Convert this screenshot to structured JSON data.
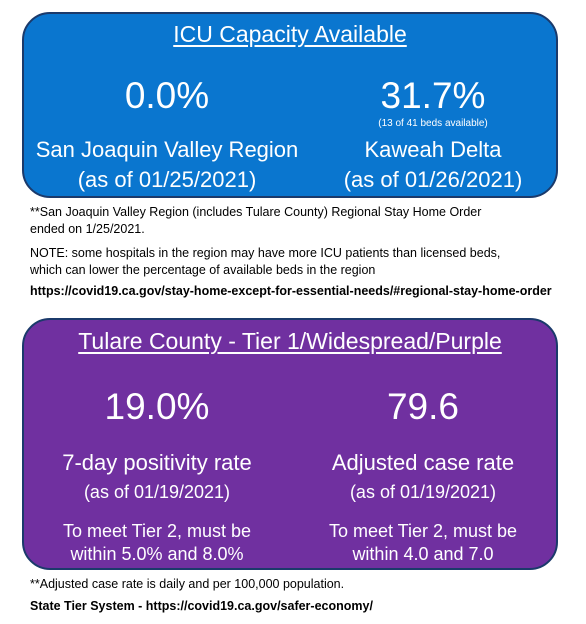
{
  "icu": {
    "title": "ICU Capacity Available",
    "left": {
      "value": "0.0%",
      "name": "San Joaquin Valley Region",
      "date": "(as of 01/25/2021)"
    },
    "right": {
      "value": "31.7%",
      "beds": "(13 of 41 beds available)",
      "name": "Kaweah Delta",
      "date": "(as of 01/26/2021)"
    },
    "colors": {
      "background": "#0a76cf",
      "text": "#ffffff"
    }
  },
  "notes": {
    "stay_home_line1": "**San Joaquin Valley Region (includes Tulare County) Regional Stay Home Order",
    "stay_home_line2": "ended on 1/25/2021.",
    "note_line1": "NOTE:  some hospitals in the region may have more ICU patients than licensed beds,",
    "note_line2": "which can lower the percentage of available beds in the region",
    "link": "https://covid19.ca.gov/stay-home-except-for-essential-needs/#regional-stay-home-order"
  },
  "tier": {
    "title": "Tulare County - Tier 1/Widespread/Purple",
    "left": {
      "value": "19.0%",
      "label": "7-day positivity rate",
      "date": "(as of 01/19/2021)",
      "req_line1": "To meet Tier 2, must be",
      "req_line2": "within 5.0% and 8.0%"
    },
    "right": {
      "value": "79.6",
      "label": "Adjusted case rate",
      "date": "(as of 01/19/2021)",
      "req_line1": "To meet Tier 2, must be",
      "req_line2": "within 4.0 and 7.0"
    },
    "colors": {
      "background": "#7030a0",
      "text": "#ffffff"
    }
  },
  "footer": {
    "note": "**Adjusted case rate is daily and per 100,000  population.",
    "link": "State Tier System - https://covid19.ca.gov/safer-economy/"
  }
}
